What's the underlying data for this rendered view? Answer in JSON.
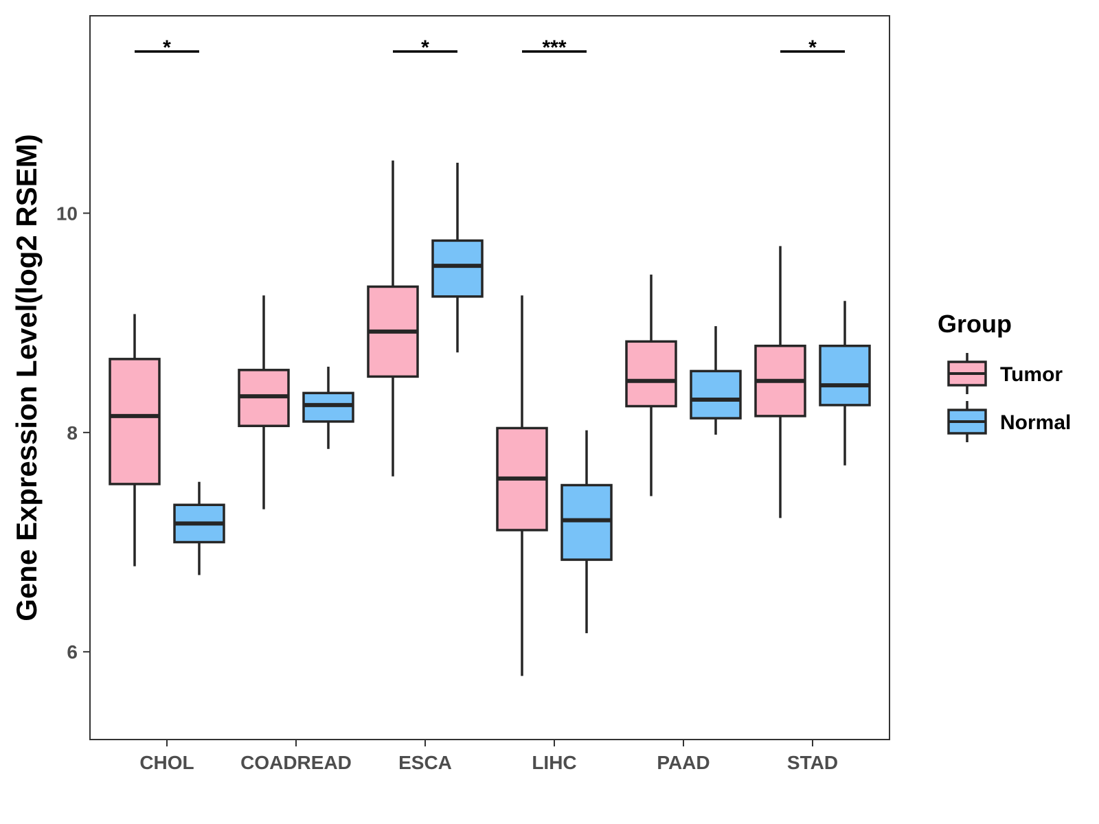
{
  "chart_data": {
    "type": "boxplot",
    "title": "",
    "xlabel": "",
    "ylabel": "Gene Expression Level(log2 RSEM)",
    "ylim": [
      5.2,
      11.8
    ],
    "yticks": [
      6,
      8,
      10
    ],
    "categories": [
      "CHOL",
      "COADREAD",
      "ESCA",
      "LIHC",
      "PAAD",
      "STAD"
    ],
    "legend": {
      "title": "Group",
      "position": "right",
      "items": [
        {
          "name": "Tumor",
          "color": "#FBB1C3"
        },
        {
          "name": "Normal",
          "color": "#78C2F8"
        }
      ]
    },
    "series": [
      {
        "name": "Tumor",
        "color": "#FBB1C3",
        "boxes": [
          {
            "category": "CHOL",
            "min": 6.78,
            "q1": 7.53,
            "median": 8.15,
            "q3": 8.67,
            "max": 9.08
          },
          {
            "category": "COADREAD",
            "min": 7.3,
            "q1": 8.06,
            "median": 8.33,
            "q3": 8.57,
            "max": 9.25
          },
          {
            "category": "ESCA",
            "min": 7.6,
            "q1": 8.51,
            "median": 8.92,
            "q3": 9.33,
            "max": 10.48
          },
          {
            "category": "LIHC",
            "min": 5.78,
            "q1": 7.11,
            "median": 7.58,
            "q3": 8.04,
            "max": 9.25
          },
          {
            "category": "PAAD",
            "min": 7.42,
            "q1": 8.24,
            "median": 8.47,
            "q3": 8.83,
            "max": 9.44
          },
          {
            "category": "STAD",
            "min": 7.22,
            "q1": 8.15,
            "median": 8.47,
            "q3": 8.79,
            "max": 9.7
          }
        ]
      },
      {
        "name": "Normal",
        "color": "#78C2F8",
        "boxes": [
          {
            "category": "CHOL",
            "min": 6.7,
            "q1": 7.0,
            "median": 7.17,
            "q3": 7.34,
            "max": 7.55
          },
          {
            "category": "COADREAD",
            "min": 7.85,
            "q1": 8.1,
            "median": 8.25,
            "q3": 8.36,
            "max": 8.6
          },
          {
            "category": "ESCA",
            "min": 8.73,
            "q1": 9.24,
            "median": 9.52,
            "q3": 9.75,
            "max": 10.46
          },
          {
            "category": "LIHC",
            "min": 6.17,
            "q1": 6.84,
            "median": 7.2,
            "q3": 7.52,
            "max": 8.02
          },
          {
            "category": "PAAD",
            "min": 7.98,
            "q1": 8.13,
            "median": 8.3,
            "q3": 8.56,
            "max": 8.97
          },
          {
            "category": "STAD",
            "min": 7.7,
            "q1": 8.25,
            "median": 8.43,
            "q3": 8.79,
            "max": 9.2
          }
        ]
      }
    ],
    "significance": [
      {
        "category": "CHOL",
        "label": "*"
      },
      {
        "category": "COADREAD",
        "label": ""
      },
      {
        "category": "ESCA",
        "label": "*"
      },
      {
        "category": "LIHC",
        "label": "***"
      },
      {
        "category": "PAAD",
        "label": ""
      },
      {
        "category": "STAD",
        "label": "*"
      }
    ],
    "grid": false
  }
}
